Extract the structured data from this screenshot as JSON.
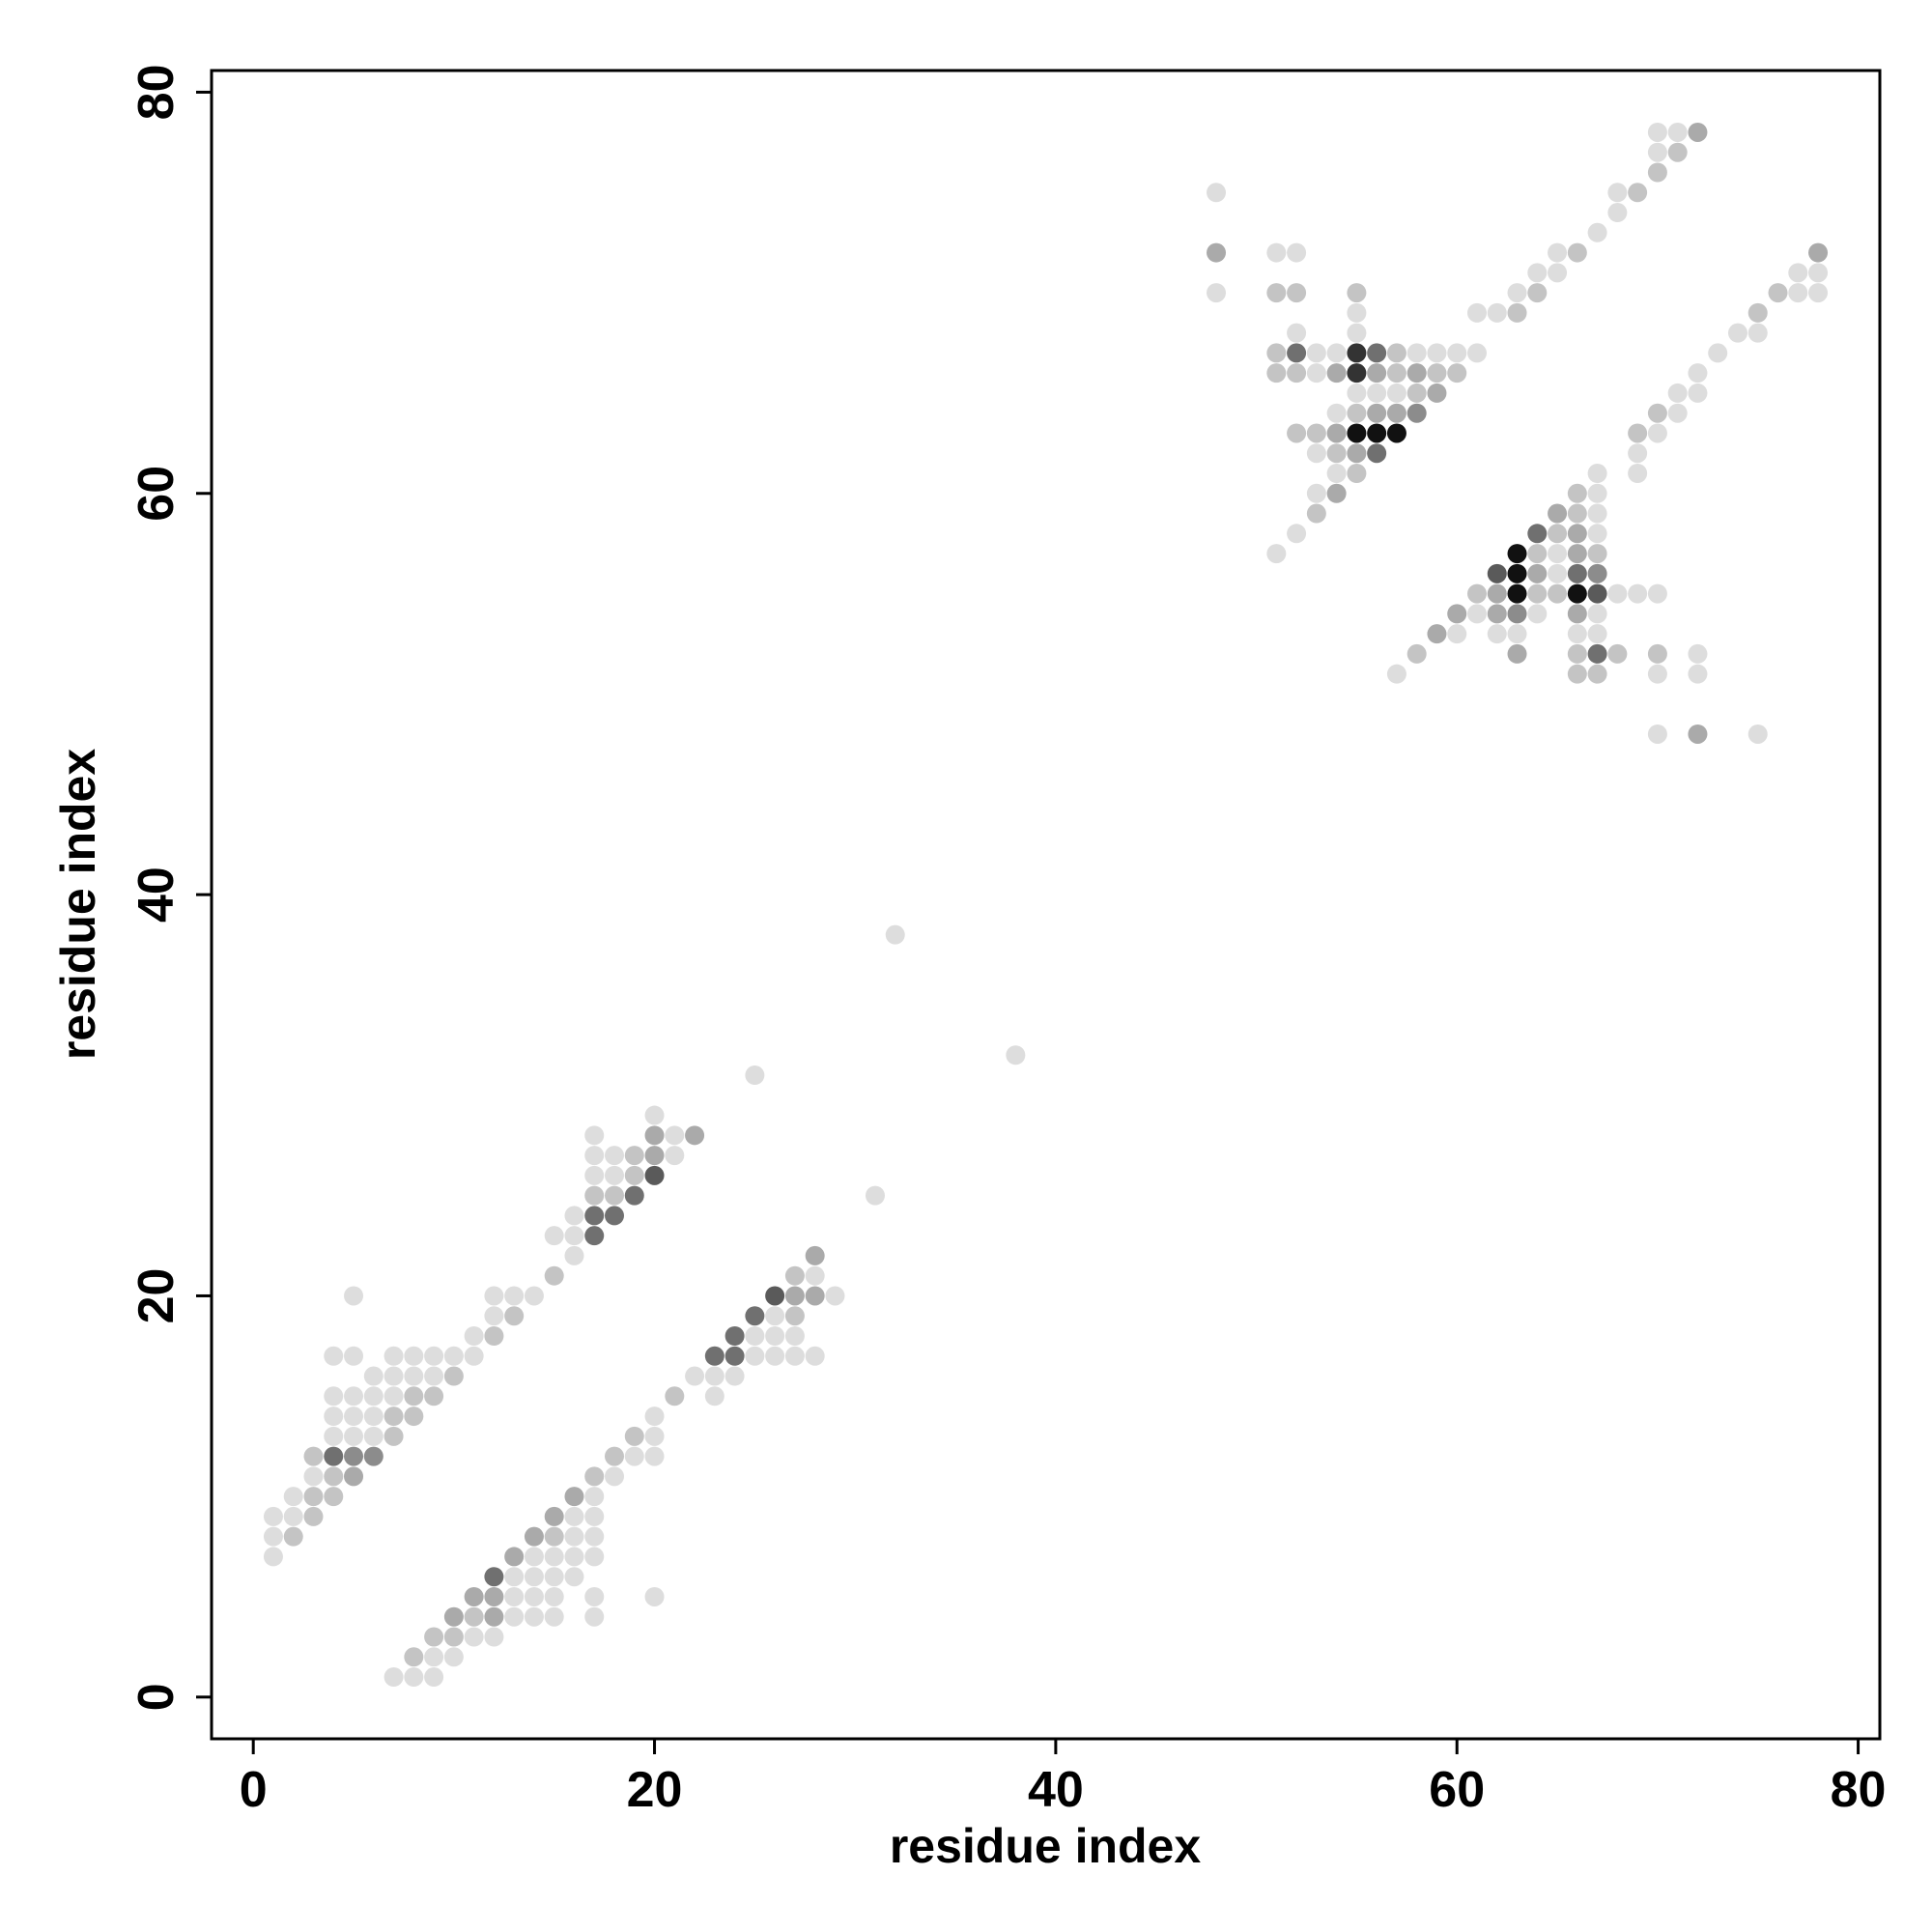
{
  "chart_data": {
    "type": "scatter",
    "xlabel": "residue index",
    "ylabel": "residue index",
    "xlim": [
      -2.08,
      81.08
    ],
    "ylim": [
      -2.08,
      81.08
    ],
    "xticks": [
      0,
      20,
      40,
      60,
      80
    ],
    "yticks": [
      0,
      20,
      40,
      60,
      80
    ],
    "x": [
      1,
      2,
      3,
      1,
      2,
      1,
      2,
      3,
      4,
      3,
      4,
      5,
      3,
      4,
      5,
      6,
      4,
      5,
      6,
      7,
      4,
      5,
      6,
      7,
      8,
      4,
      5,
      6,
      7,
      8,
      9,
      6,
      7,
      8,
      9,
      10,
      4,
      5,
      7,
      8,
      9,
      10,
      11,
      11,
      12,
      12,
      13,
      5,
      12,
      13,
      14,
      15,
      16,
      15,
      16,
      17,
      16,
      17,
      18,
      17,
      18,
      19,
      17,
      18,
      19,
      20,
      17,
      18,
      19,
      20,
      21,
      17,
      20,
      21,
      22,
      20,
      25,
      32,
      7,
      8,
      9,
      8,
      9,
      10,
      9,
      10,
      11,
      12,
      10,
      11,
      12,
      13,
      14,
      15,
      17,
      11,
      12,
      13,
      14,
      15,
      17,
      20,
      12,
      13,
      14,
      15,
      16,
      13,
      14,
      15,
      16,
      17,
      14,
      15,
      16,
      17,
      15,
      16,
      17,
      16,
      17,
      17,
      18,
      18,
      19,
      20,
      19,
      20,
      20,
      21,
      23,
      22,
      23,
      24,
      23,
      24,
      25,
      26,
      27,
      28,
      24,
      25,
      26,
      27,
      25,
      26,
      27,
      26,
      27,
      28,
      29,
      27,
      28,
      28,
      31,
      38,
      48,
      48,
      51,
      52,
      48,
      51,
      52,
      55,
      55,
      52,
      55,
      51,
      52,
      53,
      54,
      55,
      56,
      57,
      58,
      59,
      60,
      61,
      51,
      52,
      53,
      54,
      55,
      56,
      57,
      58,
      59,
      60,
      55,
      56,
      57,
      58,
      59,
      54,
      55,
      56,
      57,
      58,
      52,
      53,
      54,
      55,
      56,
      57,
      53,
      54,
      55,
      56,
      54,
      55,
      53,
      54,
      53,
      52,
      51,
      61,
      62,
      63,
      63,
      64,
      64,
      65,
      65,
      66,
      67,
      68,
      68,
      69,
      70,
      70,
      71,
      70,
      71,
      72,
      78,
      77,
      78,
      76,
      77,
      78,
      74,
      75,
      75,
      73,
      72,
      71,
      72,
      70,
      71,
      69,
      70,
      69,
      67,
      69,
      66,
      67,
      65,
      66,
      67,
      64,
      65,
      66,
      67,
      63,
      64,
      65,
      66,
      67,
      62,
      63,
      64,
      65,
      66,
      67,
      61,
      62,
      63,
      64,
      65,
      66,
      67,
      68,
      69,
      70,
      60,
      61,
      62,
      63,
      64,
      66,
      67,
      59,
      60,
      62,
      63,
      66,
      67,
      58,
      63,
      66,
      67,
      68,
      70,
      72,
      57,
      66,
      67,
      70,
      72,
      70,
      72,
      75
    ],
    "values": [
      9,
      9,
      9,
      8,
      8,
      7,
      10,
      10,
      10,
      11,
      11,
      11,
      12,
      12,
      12,
      12,
      13,
      13,
      13,
      13,
      14,
      14,
      14,
      14,
      14,
      15,
      15,
      15,
      15,
      15,
      15,
      16,
      16,
      16,
      16,
      16,
      17,
      17,
      17,
      17,
      17,
      17,
      17,
      18,
      18,
      19,
      19,
      20,
      20,
      20,
      20,
      21,
      22,
      23,
      23,
      23,
      24,
      24,
      24,
      25,
      25,
      25,
      26,
      26,
      26,
      26,
      27,
      27,
      27,
      27,
      27,
      28,
      28,
      28,
      28,
      29,
      31,
      38,
      1,
      1,
      1,
      2,
      2,
      2,
      3,
      3,
      3,
      3,
      4,
      4,
      4,
      4,
      4,
      4,
      4,
      5,
      5,
      5,
      5,
      5,
      5,
      5,
      6,
      6,
      6,
      6,
      6,
      7,
      7,
      7,
      7,
      7,
      8,
      8,
      8,
      8,
      9,
      9,
      9,
      10,
      10,
      11,
      11,
      12,
      12,
      12,
      13,
      13,
      14,
      15,
      15,
      16,
      16,
      16,
      17,
      17,
      17,
      17,
      17,
      17,
      18,
      18,
      18,
      18,
      19,
      19,
      19,
      20,
      20,
      20,
      20,
      21,
      21,
      22,
      25,
      32,
      75,
      72,
      72,
      72,
      70,
      70,
      70,
      70,
      69,
      68,
      68,
      67,
      67,
      67,
      67,
      67,
      67,
      67,
      67,
      67,
      67,
      67,
      66,
      66,
      66,
      66,
      66,
      66,
      66,
      66,
      66,
      66,
      65,
      65,
      65,
      65,
      65,
      64,
      64,
      64,
      64,
      64,
      63,
      63,
      63,
      63,
      63,
      63,
      62,
      62,
      62,
      62,
      61,
      61,
      60,
      60,
      59,
      58,
      57,
      69,
      69,
      69,
      70,
      70,
      71,
      71,
      72,
      72,
      73,
      74,
      75,
      75,
      76,
      77,
      77,
      78,
      78,
      78,
      72,
      71,
      71,
      70,
      70,
      70,
      68,
      68,
      69,
      67,
      66,
      65,
      65,
      64,
      64,
      63,
      63,
      62,
      61,
      61,
      60,
      60,
      59,
      59,
      59,
      58,
      58,
      58,
      58,
      57,
      57,
      57,
      57,
      57,
      56,
      56,
      56,
      56,
      56,
      56,
      55,
      55,
      55,
      55,
      55,
      55,
      55,
      55,
      55,
      55,
      54,
      54,
      54,
      54,
      54,
      54,
      54,
      53,
      53,
      53,
      53,
      53,
      53,
      52,
      52,
      52,
      52,
      52,
      52,
      52,
      51,
      51,
      51,
      51,
      51,
      48,
      48,
      48
    ],
    "colors": [
      "#ddd",
      "#ddd",
      "#c4c4c4",
      "#ddd",
      "#c4c4c4",
      "#ddd",
      "#ddd",
      "#c4c4c4",
      "#c4c4c4",
      "#ddd",
      "#c4c4c4",
      "#aaa",
      "#c4c4c4",
      "#707070",
      "#8c8c8c",
      "#8c8c8c",
      "#ddd",
      "#ddd",
      "#ddd",
      "#c4c4c4",
      "#ddd",
      "#ddd",
      "#ddd",
      "#c4c4c4",
      "#c4c4c4",
      "#ddd",
      "#ddd",
      "#ddd",
      "#ddd",
      "#c4c4c4",
      "#c4c4c4",
      "#ddd",
      "#ddd",
      "#ddd",
      "#ddd",
      "#c4c4c4",
      "#ddd",
      "#ddd",
      "#ddd",
      "#ddd",
      "#ddd",
      "#ddd",
      "#ddd",
      "#ddd",
      "#c4c4c4",
      "#ddd",
      "#c4c4c4",
      "#ddd",
      "#ddd",
      "#ddd",
      "#ddd",
      "#c4c4c4",
      "#ddd",
      "#ddd",
      "#ddd",
      "#707070",
      "#ddd",
      "#707070",
      "#707070",
      "#c4c4c4",
      "#c4c4c4",
      "#707070",
      "#ddd",
      "#ddd",
      "#c4c4c4",
      "#5a5a5a",
      "#ddd",
      "#ddd",
      "#c4c4c4",
      "#aaa",
      "#ddd",
      "#ddd",
      "#aaa",
      "#ddd",
      "#aaa",
      "#ddd",
      "#ddd",
      "#ddd",
      "#ddd",
      "#ddd",
      "#ddd",
      "#c4c4c4",
      "#ddd",
      "#ddd",
      "#c4c4c4",
      "#c4c4c4",
      "#ddd",
      "#ddd",
      "#aaa",
      "#c4c4c4",
      "#aaa",
      "#ddd",
      "#ddd",
      "#ddd",
      "#ddd",
      "#aaa",
      "#aaa",
      "#ddd",
      "#ddd",
      "#ddd",
      "#ddd",
      "#ddd",
      "#707070",
      "#ddd",
      "#ddd",
      "#ddd",
      "#ddd",
      "#aaa",
      "#ddd",
      "#ddd",
      "#ddd",
      "#ddd",
      "#aaa",
      "#c4c4c4",
      "#ddd",
      "#ddd",
      "#aaa",
      "#ddd",
      "#ddd",
      "#aaa",
      "#ddd",
      "#c4c4c4",
      "#ddd",
      "#c4c4c4",
      "#ddd",
      "#ddd",
      "#c4c4c4",
      "#ddd",
      "#ddd",
      "#c4c4c4",
      "#ddd",
      "#ddd",
      "#ddd",
      "#ddd",
      "#707070",
      "#707070",
      "#ddd",
      "#ddd",
      "#ddd",
      "#ddd",
      "#707070",
      "#ddd",
      "#ddd",
      "#ddd",
      "#707070",
      "#ddd",
      "#c4c4c4",
      "#5a5a5a",
      "#aaa",
      "#aaa",
      "#ddd",
      "#c4c4c4",
      "#ddd",
      "#aaa",
      "#ddd",
      "#ddd",
      "#ddd",
      "#aaa",
      "#ddd",
      "#ddd",
      "#ddd",
      "#c4c4c4",
      "#c4c4c4",
      "#c4c4c4",
      "#ddd",
      "#ddd",
      "#ddd",
      "#c4c4c4",
      "#707070",
      "#ddd",
      "#ddd",
      "#333",
      "#707070",
      "#c4c4c4",
      "#ddd",
      "#ddd",
      "#ddd",
      "#ddd",
      "#c4c4c4",
      "#c4c4c4",
      "#ddd",
      "#aaa",
      "#333",
      "#aaa",
      "#c4c4c4",
      "#aaa",
      "#c4c4c4",
      "#c4c4c4",
      "#ddd",
      "#ddd",
      "#ddd",
      "#c4c4c4",
      "#aaa",
      "#ddd",
      "#c4c4c4",
      "#aaa",
      "#aaa",
      "#8c8c8c",
      "#c4c4c4",
      "#c4c4c4",
      "#aaa",
      "#111",
      "#111",
      "#111",
      "#ddd",
      "#c4c4c4",
      "#aaa",
      "#707070",
      "#ddd",
      "#c4c4c4",
      "#ddd",
      "#aaa",
      "#c4c4c4",
      "#ddd",
      "#ddd",
      "#ddd",
      "#ddd",
      "#c4c4c4",
      "#ddd",
      "#c4c4c4",
      "#ddd",
      "#ddd",
      "#ddd",
      "#c4c4c4",
      "#ddd",
      "#ddd",
      "#ddd",
      "#c4c4c4",
      "#c4c4c4",
      "#ddd",
      "#c4c4c4",
      "#ddd",
      "#ddd",
      "#aaa",
      "#aaa",
      "#ddd",
      "#ddd",
      "#c4c4c4",
      "#ddd",
      "#ddd",
      "#ddd",
      "#ddd",
      "#c4c4c4",
      "#ddd",
      "#ddd",
      "#ddd",
      "#ddd",
      "#c4c4c4",
      "#ddd",
      "#c4c4c4",
      "#ddd",
      "#ddd",
      "#ddd",
      "#ddd",
      "#c4c4c4",
      "#ddd",
      "#aaa",
      "#c4c4c4",
      "#ddd",
      "#707070",
      "#c4c4c4",
      "#aaa",
      "#ddd",
      "#111",
      "#c4c4c4",
      "#ddd",
      "#aaa",
      "#c4c4c4",
      "#5a5a5a",
      "#111",
      "#aaa",
      "#ddd",
      "#707070",
      "#8c8c8c",
      "#c4c4c4",
      "#aaa",
      "#111",
      "#c4c4c4",
      "#c4c4c4",
      "#111",
      "#5a5a5a",
      "#ddd",
      "#ddd",
      "#ddd",
      "#aaa",
      "#ddd",
      "#aaa",
      "#8c8c8c",
      "#ddd",
      "#aaa",
      "#ddd",
      "#aaa",
      "#ddd",
      "#ddd",
      "#ddd",
      "#ddd",
      "#ddd",
      "#c4c4c4",
      "#aaa",
      "#c4c4c4",
      "#707070",
      "#c4c4c4",
      "#c4c4c4",
      "#ddd",
      "#ddd",
      "#c4c4c4",
      "#c4c4c4",
      "#ddd",
      "#ddd",
      "#ddd",
      "#aaa",
      "#ddd"
    ]
  }
}
